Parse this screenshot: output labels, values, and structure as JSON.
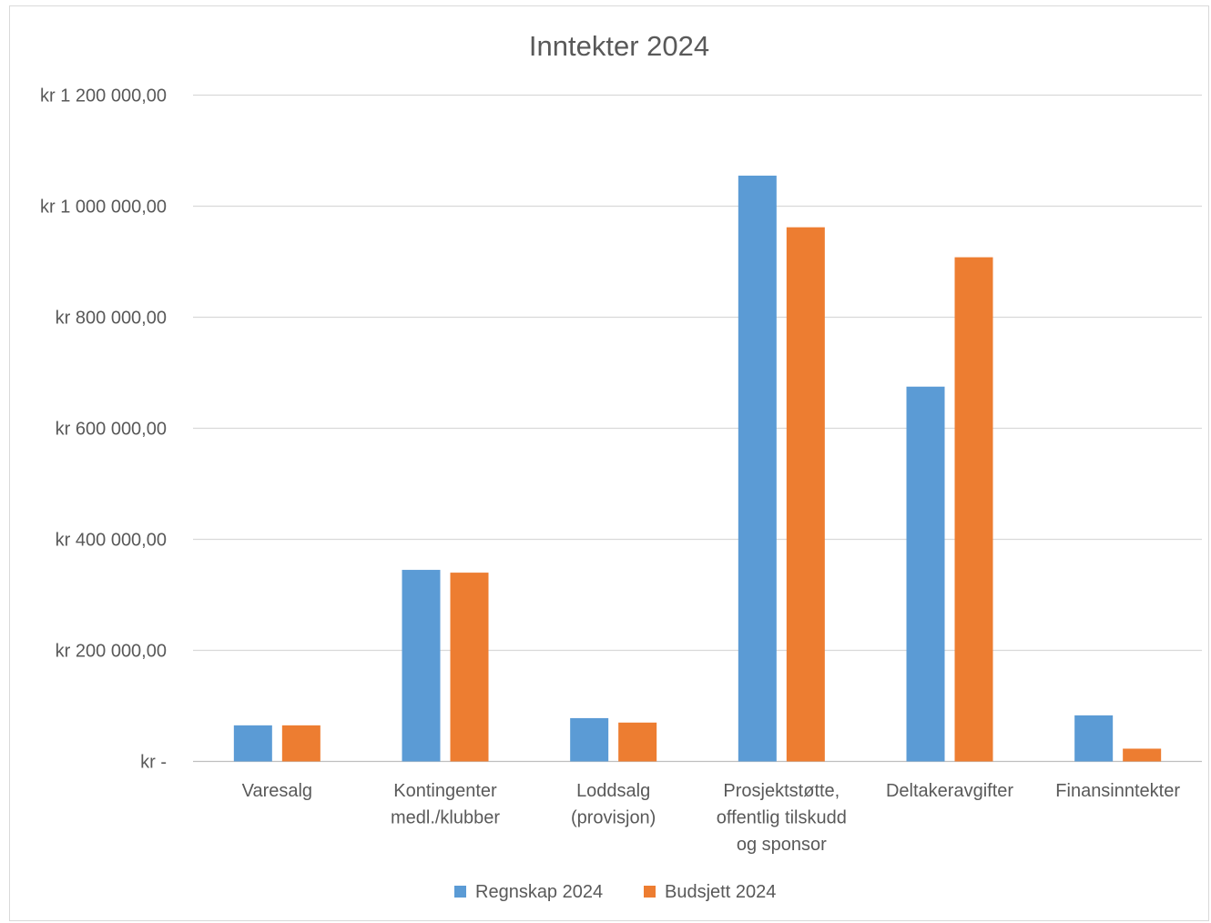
{
  "chart_data": {
    "type": "bar",
    "title": "Inntekter 2024",
    "categories": [
      [
        "Varesalg"
      ],
      [
        "Kontingenter",
        "medl./klubber"
      ],
      [
        "Loddsalg",
        "(provisjon)"
      ],
      [
        "Prosjektstøtte,",
        "offentlig tilskudd",
        "og sponsor"
      ],
      [
        "Deltakeravgifter"
      ],
      [
        "Finansinntekter"
      ]
    ],
    "series": [
      {
        "name": "Regnskap 2024",
        "color": "#5b9bd5",
        "values": [
          65000,
          345000,
          78000,
          1055000,
          675000,
          83000
        ]
      },
      {
        "name": "Budsjett 2024",
        "color": "#ed7d31",
        "values": [
          65000,
          340000,
          70000,
          962000,
          908000,
          23000
        ]
      }
    ],
    "yticks": [
      0,
      200000,
      400000,
      600000,
      800000,
      1000000,
      1200000
    ],
    "ytick_labels": [
      "kr -",
      "kr 200 000,00",
      "kr 400 000,00",
      "kr 600 000,00",
      "kr 800 000,00",
      "kr 1 000 000,00",
      "kr 1 200 000,00"
    ],
    "ylim": [
      0,
      1200000
    ],
    "grid": true,
    "legend_position": "bottom"
  }
}
